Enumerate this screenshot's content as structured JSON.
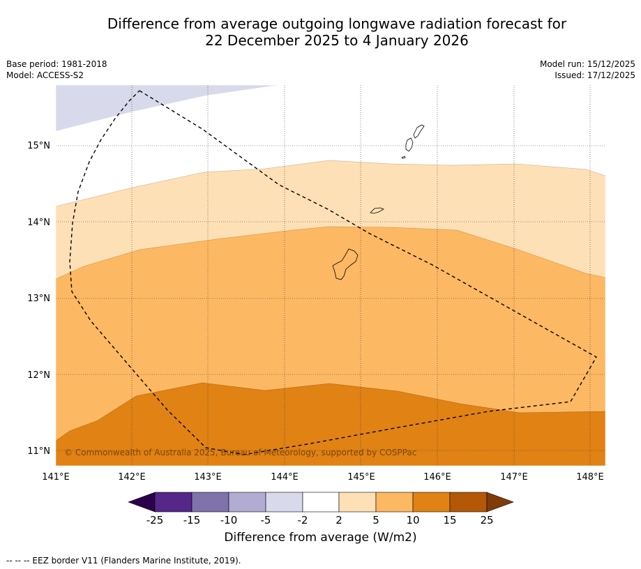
{
  "title_line1": "Difference from average outgoing longwave radiation forecast for",
  "title_line2": "22 December 2025 to 4 January 2026",
  "base_period": "Base period: 1981-2018",
  "model": "Model: ACCESS-S2",
  "model_run": "Model run: 15/12/2025",
  "issued": "Issued: 17/12/2025",
  "copyright": "© Commonwealth of Australia 2025, Bureau of Meteorology, supported by COSPPac",
  "lat_ticks": [
    "15°N",
    "14°N",
    "13°N",
    "12°N",
    "11°N"
  ],
  "lon_ticks": [
    "141°E",
    "142°E",
    "143°E",
    "144°E",
    "145°E",
    "146°E",
    "147°E",
    "148°E"
  ],
  "colorbar": {
    "ticks": [
      "-25",
      "-15",
      "-10",
      "-5",
      "-2",
      "2",
      "5",
      "10",
      "15",
      "25"
    ],
    "colors": {
      "under": "#2d004b",
      "b1": "#542788",
      "b2": "#8073ac",
      "b3": "#b2abd2",
      "b4": "#d8daeb",
      "b5": "#ffffff",
      "b6": "#fee0b6",
      "b7": "#fdb863",
      "b8": "#e08214",
      "b9": "#b35806",
      "over": "#7f3b08"
    },
    "label": "Difference from average (W/m2)"
  },
  "footnote": "--  --  -- EEZ border V11 (Flanders Marine Institute, 2019)."
}
